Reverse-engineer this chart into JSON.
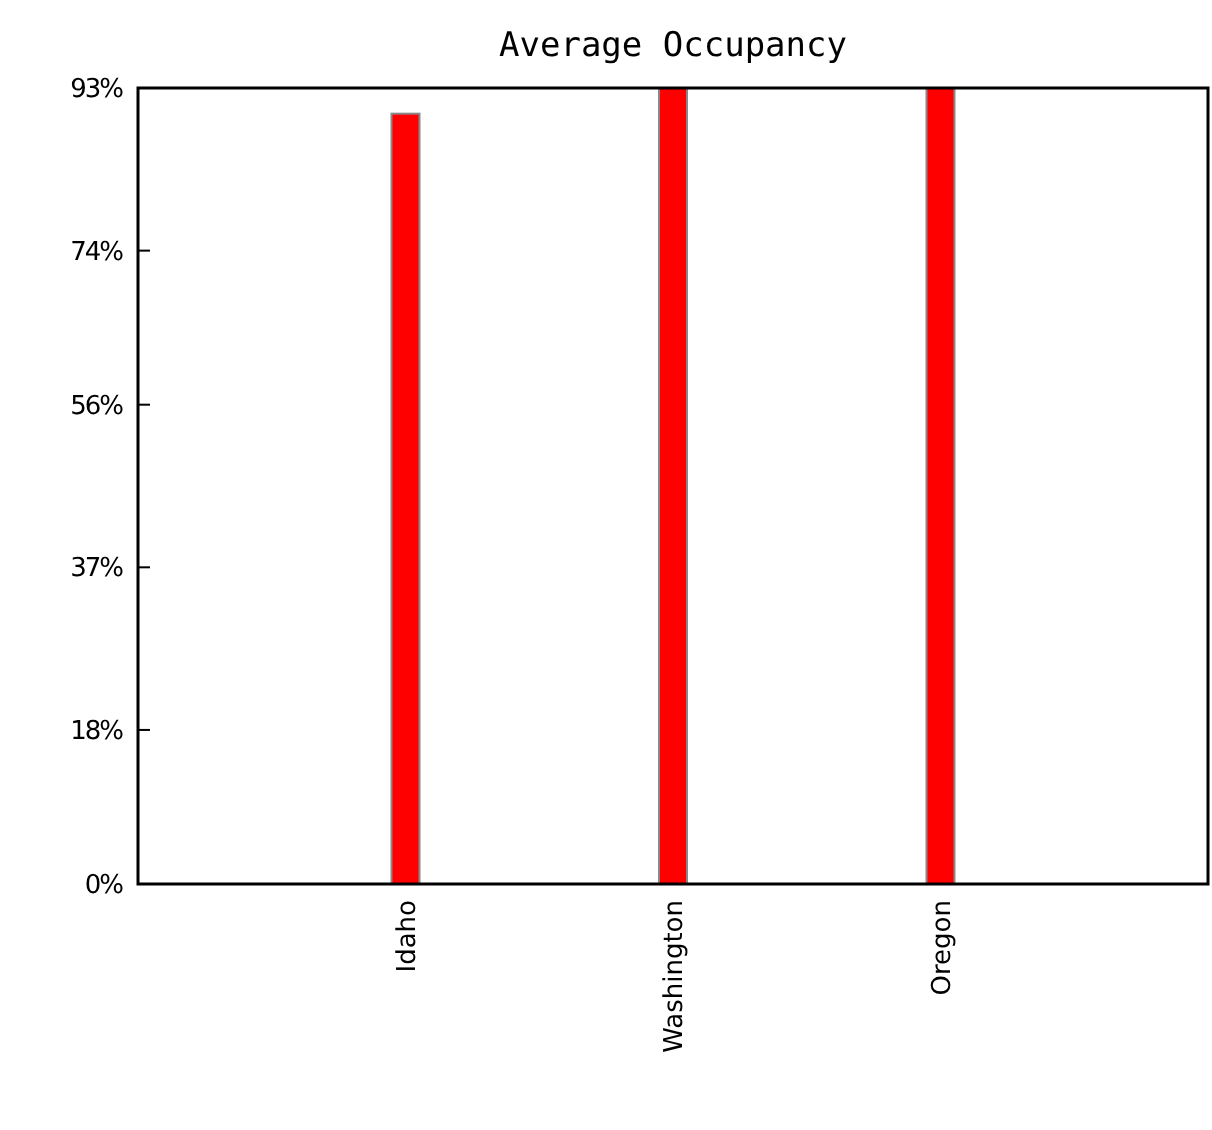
{
  "chart_data": {
    "type": "bar",
    "title": "Average Occupancy",
    "categories": [
      "Idaho",
      "Washington",
      "Oregon"
    ],
    "values": [
      90,
      93,
      93
    ],
    "color": "#ff0000",
    "ylim": [
      0,
      93
    ],
    "yticks": [
      {
        "value": 0,
        "label": "0%"
      },
      {
        "value": 18,
        "label": "18%"
      },
      {
        "value": 37,
        "label": "37%"
      },
      {
        "value": 56,
        "label": "56%"
      },
      {
        "value": 74,
        "label": "74%"
      },
      {
        "value": 93,
        "label": "93%"
      }
    ],
    "grid": false
  }
}
